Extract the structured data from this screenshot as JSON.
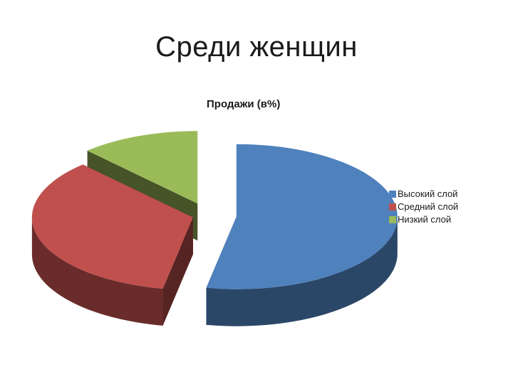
{
  "slide": {
    "title": "Среди женщин"
  },
  "chart_data": {
    "type": "pie",
    "style": "3d-exploded",
    "title": "Продажи (в%)",
    "categories": [
      "Высокий слой",
      "Средний  слой",
      "Низкий  слой"
    ],
    "values": [
      53,
      35,
      12
    ],
    "colors": [
      "#4F81BD",
      "#C0504D",
      "#9BBB59"
    ],
    "legend": "right"
  }
}
